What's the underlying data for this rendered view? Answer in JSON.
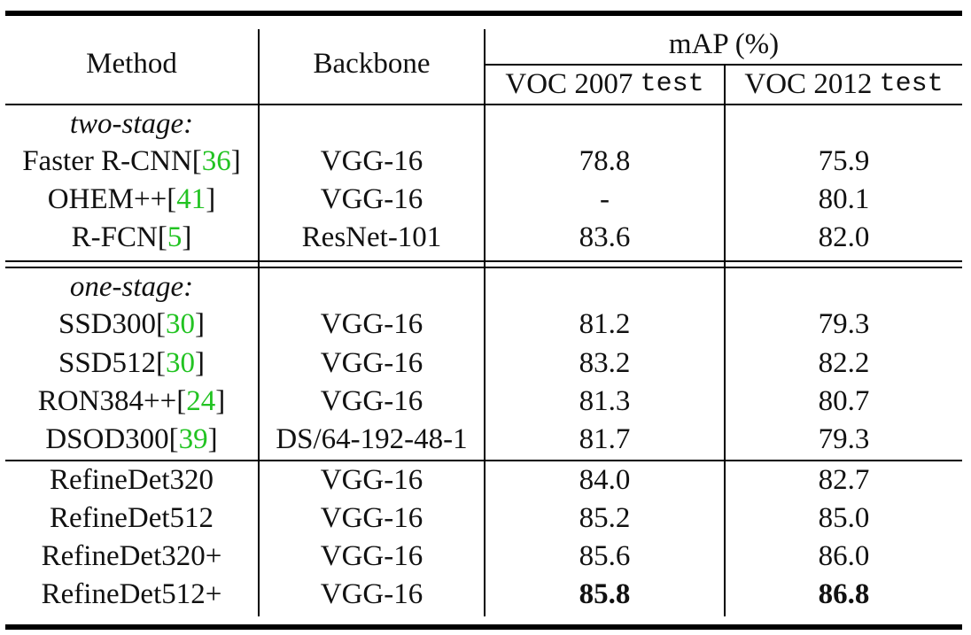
{
  "header": {
    "method": "Method",
    "backbone": "Backbone",
    "map": "mAP (%)",
    "voc2007_a": "VOC 2007",
    "voc2007_b": "test",
    "voc2012_a": "VOC 2012",
    "voc2012_b": "test"
  },
  "sections": {
    "two_stage": "two-stage:",
    "one_stage": "one-stage:"
  },
  "rows": [
    {
      "name": "Faster R-CNN",
      "cite": "36",
      "backbone": "VGG-16",
      "voc2007": "78.8",
      "voc2012": "75.9"
    },
    {
      "name": "OHEM++",
      "cite": "41",
      "backbone": "VGG-16",
      "voc2007": "-",
      "voc2012": "80.1"
    },
    {
      "name": "R-FCN",
      "cite": "5",
      "backbone": "ResNet-101",
      "voc2007": "83.6",
      "voc2012": "82.0"
    },
    {
      "name": "SSD300",
      "cite": "30",
      "backbone": "VGG-16",
      "voc2007": "81.2",
      "voc2012": "79.3"
    },
    {
      "name": "SSD512",
      "cite": "30",
      "backbone": "VGG-16",
      "voc2007": "83.2",
      "voc2012": "82.2"
    },
    {
      "name": "RON384++",
      "cite": "24",
      "backbone": "VGG-16",
      "voc2007": "81.3",
      "voc2012": "80.7"
    },
    {
      "name": "DSOD300",
      "cite": "39",
      "backbone": "DS/64-192-48-1",
      "voc2007": "81.7",
      "voc2012": "79.3"
    },
    {
      "name": "RefineDet320",
      "backbone": "VGG-16",
      "voc2007": "84.0",
      "voc2012": "82.7"
    },
    {
      "name": "RefineDet512",
      "backbone": "VGG-16",
      "voc2007": "85.2",
      "voc2012": "85.0"
    },
    {
      "name": "RefineDet320+",
      "backbone": "VGG-16",
      "voc2007": "85.6",
      "voc2012": "86.0"
    },
    {
      "name": "RefineDet512+",
      "backbone": "VGG-16",
      "voc2007": "85.8",
      "voc2012": "86.8"
    }
  ],
  "colors": {
    "citation": "#22c322"
  }
}
